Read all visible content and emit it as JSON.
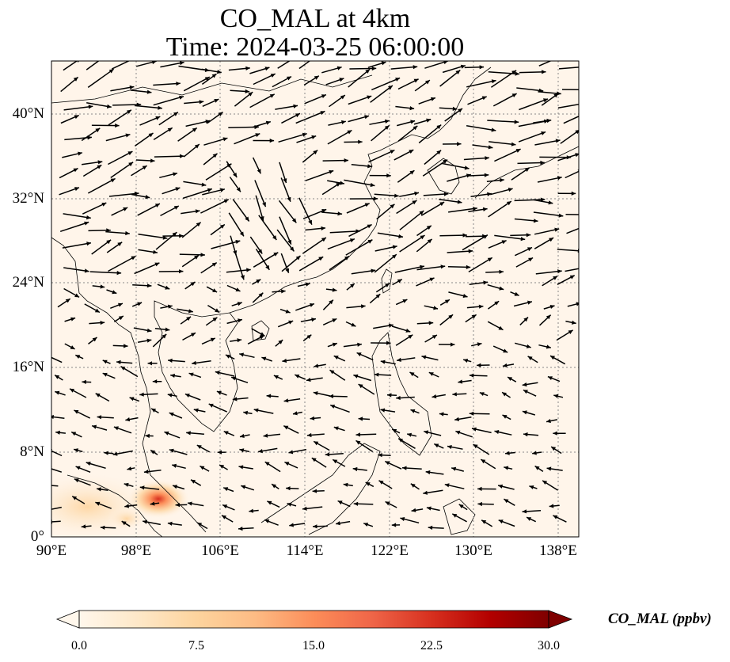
{
  "title": {
    "line1": "CO_MAL at 4km",
    "line2": "Time: 2024-03-25 06:00:00"
  },
  "map": {
    "projection": "PlateCarree",
    "lon_range": [
      90,
      140
    ],
    "lat_range": [
      0,
      45
    ],
    "lon_ticks": [
      90,
      98,
      106,
      114,
      122,
      130,
      138
    ],
    "lat_ticks": [
      0,
      8,
      16,
      24,
      32,
      40
    ],
    "lon_tick_labels": [
      "90°E",
      "98°E",
      "106°E",
      "114°E",
      "122°E",
      "130°E",
      "138°E"
    ],
    "lat_tick_labels": [
      "0°",
      "8°N",
      "16°N",
      "24°N",
      "32°N",
      "40°N"
    ],
    "gridlines": "dotted",
    "background_color": "#fff5ea",
    "coastline_color": "#000000",
    "field_hotspot": {
      "lon": 100.5,
      "lat": 3.5,
      "max_value": 15.0
    },
    "wind_vectors": "black arrows"
  },
  "colorbar": {
    "label": "CO_MAL (ppbv)",
    "min": 0.0,
    "max": 30.0,
    "ticks": [
      "0.0",
      "7.5",
      "15.0",
      "22.5",
      "30.0"
    ],
    "colormap": "OrRd",
    "extend": "both",
    "colors": [
      "#fff7ec",
      "#fee8c8",
      "#fdd49e",
      "#fdbb84",
      "#fc8d59",
      "#ef6548",
      "#d7301f",
      "#b30000",
      "#7f0000"
    ]
  }
}
